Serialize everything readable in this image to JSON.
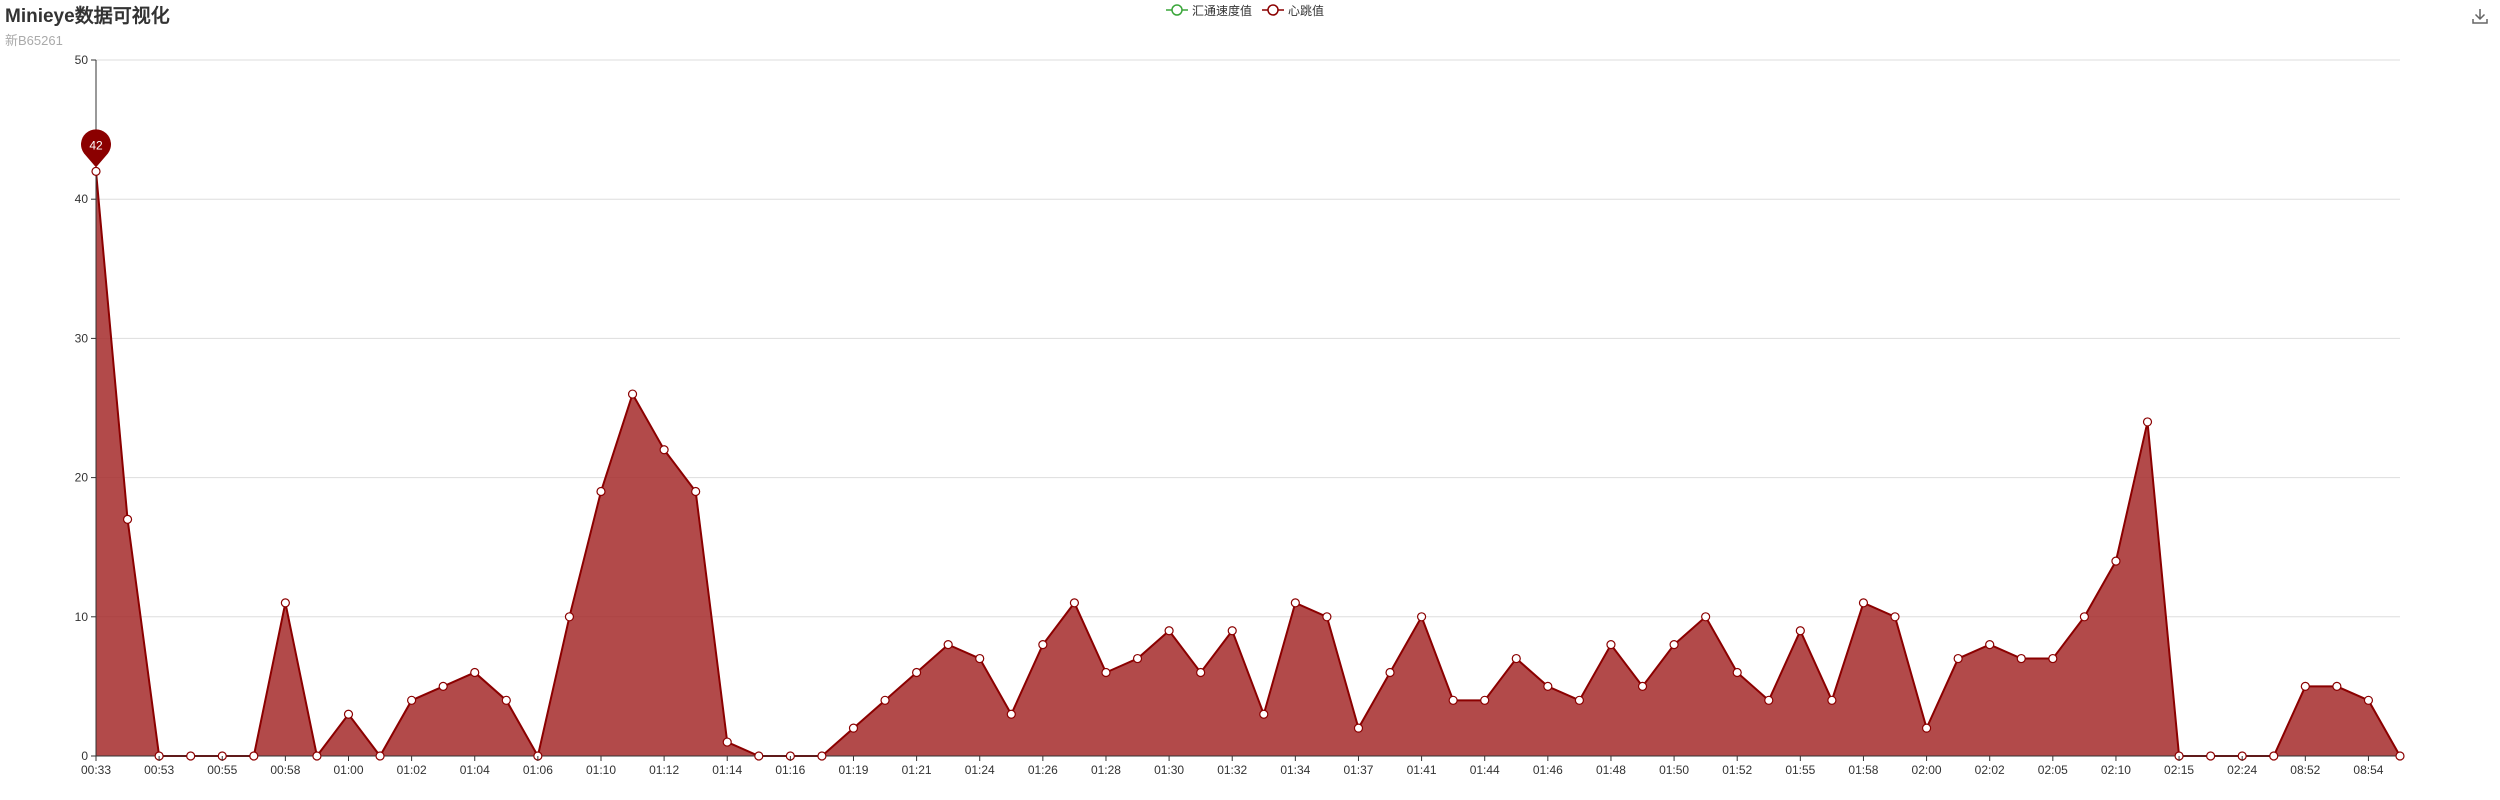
{
  "header": {
    "title": "Minieye数据可视化",
    "subtitle": "新B65261"
  },
  "toolbar": {
    "save_icon": "download-icon"
  },
  "colors": {
    "series_line": "#8b0000",
    "series_fill": "#a52a2a",
    "series2": "#3aa63a",
    "grid": "#dddddd",
    "axis": "#333333"
  },
  "chart_data": {
    "type": "area",
    "title": "Minieye数据可视化",
    "subtitle": "新B65261",
    "legend": [
      "汇通速度值",
      "心跳值"
    ],
    "legend_position": "top-center",
    "ylim": [
      0,
      50
    ],
    "yticks": [
      0,
      10,
      20,
      30,
      40,
      50
    ],
    "grid": true,
    "x_tick_labels": [
      "00:33",
      "00:53",
      "00:55",
      "00:58",
      "01:00",
      "01:02",
      "01:04",
      "01:06",
      "01:10",
      "01:12",
      "01:14",
      "01:16",
      "01:19",
      "01:21",
      "01:24",
      "01:26",
      "01:28",
      "01:30",
      "01:32",
      "01:34",
      "01:37",
      "01:41",
      "01:44",
      "01:46",
      "01:48",
      "01:50",
      "01:52",
      "01:55",
      "01:58",
      "02:00",
      "02:02",
      "02:05",
      "02:10",
      "02:15",
      "02:24",
      "08:52",
      "08:54"
    ],
    "series": [
      {
        "name": "汇通速度值",
        "values": []
      },
      {
        "name": "心跳值",
        "values": [
          42,
          17,
          0,
          0,
          0,
          0,
          11,
          0,
          3,
          0,
          4,
          5,
          6,
          4,
          0,
          10,
          19,
          26,
          22,
          19,
          1,
          0,
          0,
          0,
          2,
          4,
          6,
          8,
          7,
          3,
          8,
          11,
          6,
          7,
          9,
          6,
          9,
          3,
          11,
          10,
          2,
          6,
          10,
          4,
          4,
          7,
          5,
          4,
          8,
          5,
          8,
          10,
          6,
          4,
          9,
          4,
          11,
          10,
          2,
          7,
          8,
          7,
          7,
          10,
          14,
          24,
          0,
          0,
          0,
          0,
          5,
          5,
          4,
          0
        ]
      }
    ],
    "markpoint": {
      "series": "心跳值",
      "label": "42",
      "type": "max"
    }
  }
}
